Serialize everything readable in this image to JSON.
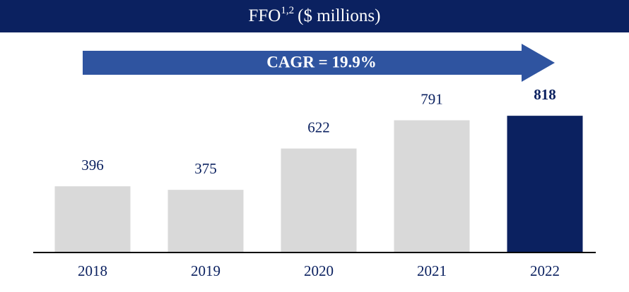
{
  "chart_data": {
    "type": "bar",
    "title": "FFO",
    "title_superscript": "1,2",
    "title_suffix": "($ millions)",
    "annotation": "CAGR = 19.9%",
    "categories": [
      "2018",
      "2019",
      "2020",
      "2021",
      "2022"
    ],
    "values": [
      396,
      375,
      622,
      791,
      818
    ],
    "color": "#d9d9d9",
    "highlight": {
      "index": 4,
      "color": "#0b2160"
    },
    "ylim": [
      0,
      1000
    ]
  }
}
